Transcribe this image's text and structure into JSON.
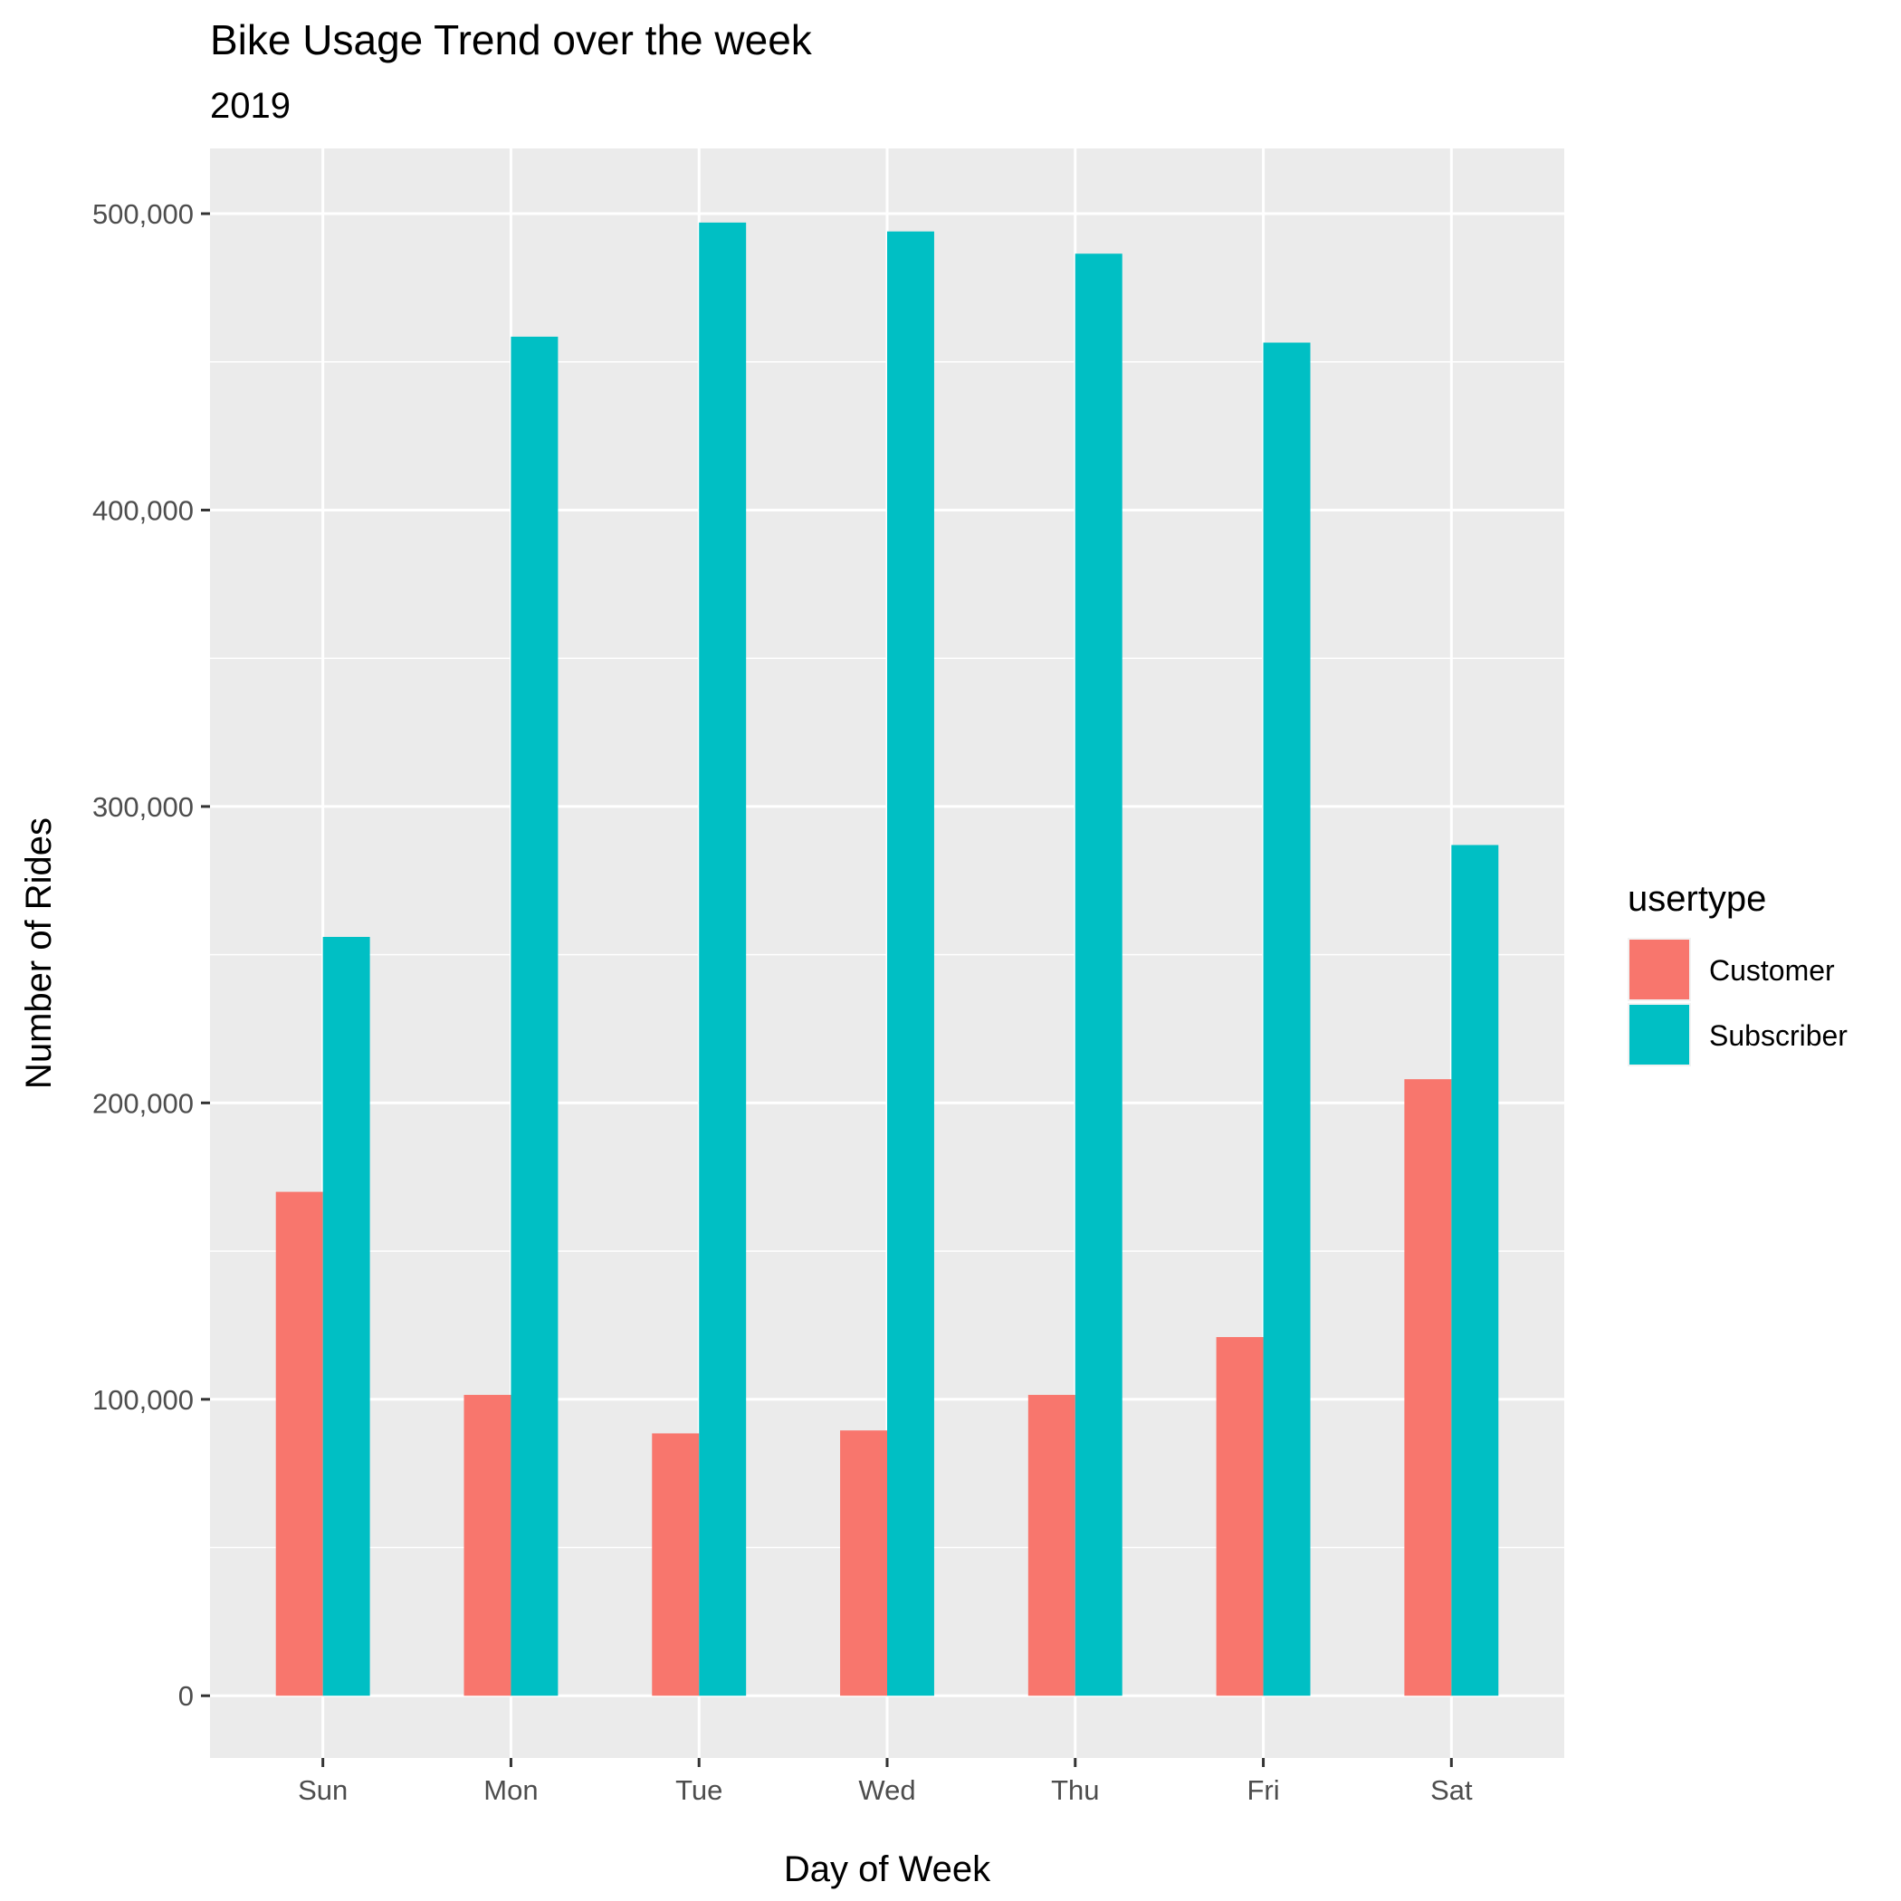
{
  "chart_data": {
    "type": "bar",
    "title": "Bike Usage Trend over the week",
    "subtitle": "2019",
    "xlabel": "Day of Week",
    "ylabel": "Number of Rides",
    "categories": [
      "Sun",
      "Mon",
      "Tue",
      "Wed",
      "Thu",
      "Fri",
      "Sat"
    ],
    "series": [
      {
        "name": "Customer",
        "color": "#F8766D",
        "values": [
          170000,
          101500,
          88500,
          89500,
          101500,
          121000,
          208000
        ]
      },
      {
        "name": "Subscriber",
        "color": "#00BFC4",
        "values": [
          256000,
          458500,
          497000,
          494000,
          486500,
          456500,
          287000
        ]
      }
    ],
    "ylim": [
      -21000,
      522000
    ],
    "yticks": [
      0,
      100000,
      200000,
      300000,
      400000,
      500000
    ],
    "ytick_labels": [
      "0",
      "100,000",
      "200,000",
      "300,000",
      "400,000",
      "500,000"
    ],
    "grid": true,
    "legend": {
      "title": "usertype",
      "position": "right"
    },
    "panel_color": "#EBEBEB",
    "grid_color": "#FFFFFF"
  }
}
